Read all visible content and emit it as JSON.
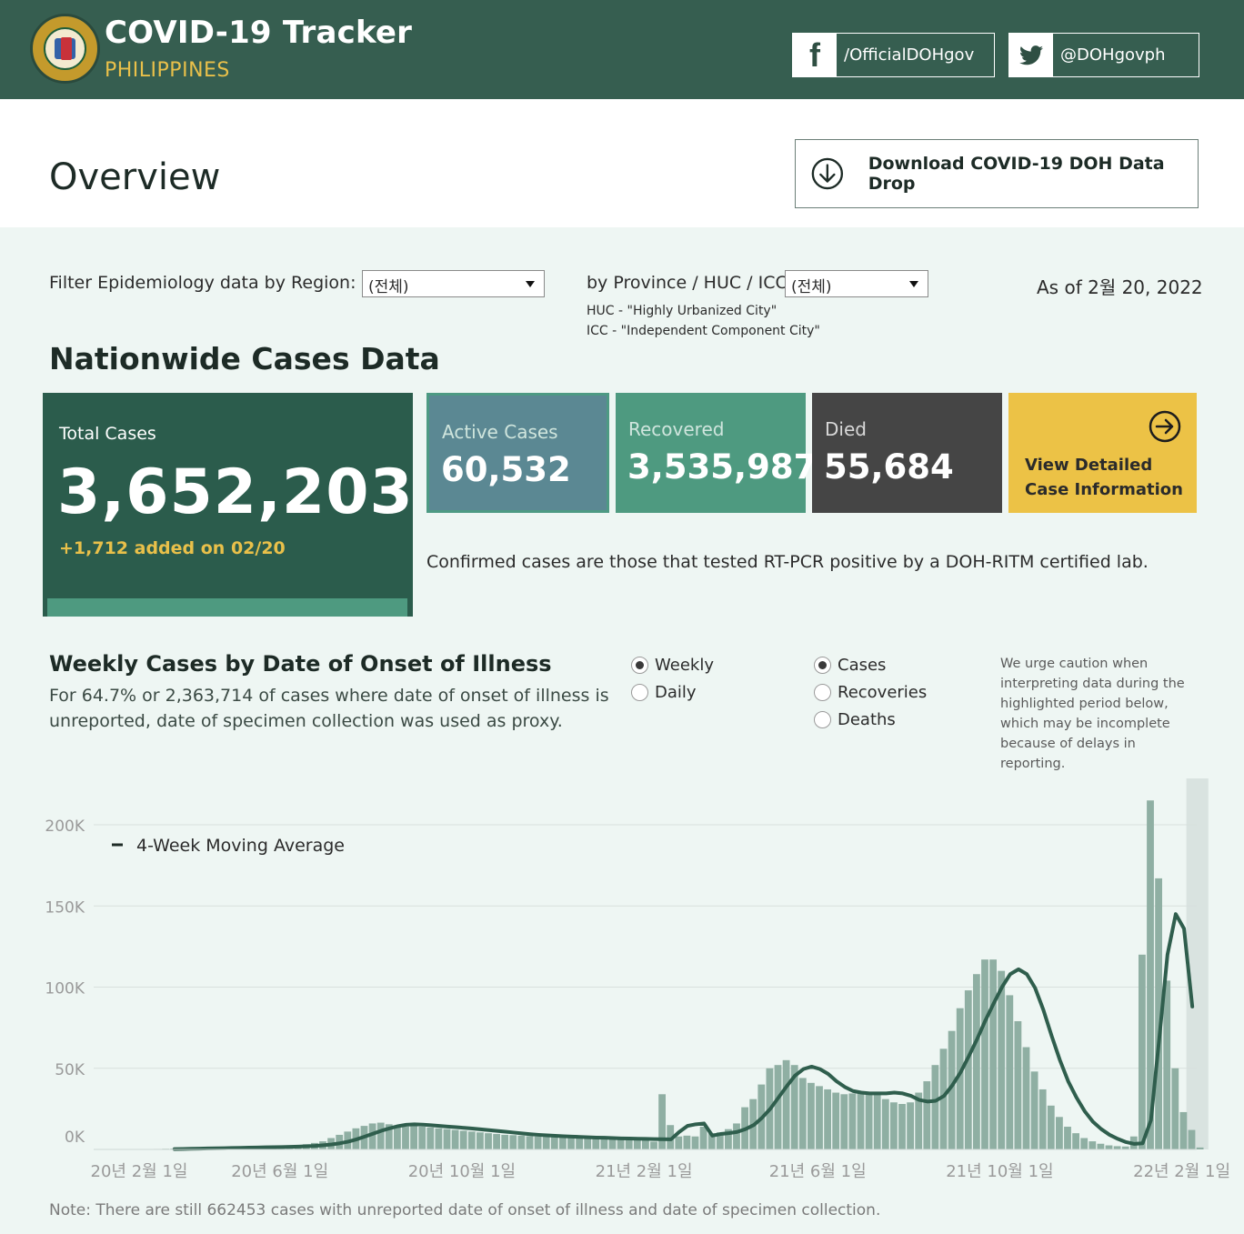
{
  "header": {
    "title": "COVID-19 Tracker",
    "subtitle": "PHILIPPINES",
    "facebook": "/OfficialDOHgov",
    "twitter": "@DOHgovph"
  },
  "overview": {
    "title": "Overview",
    "download_label": "Download COVID-19 DOH Data Drop"
  },
  "filters": {
    "region_label": "Filter Epidemiology data by Region:",
    "region_value": "(전체)",
    "province_label": "by Province / HUC / ICC:",
    "province_value": "(전체)",
    "huc_note": "HUC - \"Highly Urbanized City\"",
    "icc_note": "ICC - \"Independent Component City\"",
    "as_of": "As of 2월 20, 2022"
  },
  "nationwide": {
    "title": "Nationwide Cases Data",
    "total_label": "Total Cases",
    "total_value": "3,652,203",
    "total_added": "+1,712 added on 02/20",
    "active_label": "Active Cases",
    "active_value": "60,532",
    "recovered_label": "Recovered",
    "recovered_value": "3,535,987",
    "died_label": "Died",
    "died_value": "55,684",
    "detail_line1": "View Detailed",
    "detail_line2": "Case Information",
    "confirmed_note": "Confirmed cases are those that tested RT-PCR positive by a DOH-RITM certified lab."
  },
  "weekly": {
    "title": "Weekly Cases by Date of Onset of Illness",
    "desc_line1": "For 64.7% or 2,363,714 of cases where date of onset of illness is",
    "desc_line2": "unreported, date of specimen collection was used as proxy.",
    "period_options": [
      "Weekly",
      "Daily"
    ],
    "period_selected": "Weekly",
    "metric_options": [
      "Cases",
      "Recoveries",
      "Deaths"
    ],
    "metric_selected": "Cases",
    "caution": [
      "We urge caution when",
      "interpreting data during the",
      "highlighted period below,",
      "which may be incomplete",
      "because of delays in",
      "reporting."
    ]
  },
  "chart_data": {
    "type": "bar",
    "legend": "4-Week Moving Average",
    "y_ticks": [
      "0K",
      "50K",
      "100K",
      "150K",
      "200K"
    ],
    "ylim": [
      0,
      200000
    ],
    "x_tick_labels": [
      "20년 2월 1일",
      "20년 6월 1일",
      "20년 10월 1일",
      "21년 2월 1일",
      "21년 6월 1일",
      "21년 10월 1일",
      "22년 2월 1일"
    ],
    "x_tick_week_index": [
      0,
      17,
      39,
      61,
      82,
      104,
      126
    ],
    "bar_color": "#8fafa3",
    "line_color": "#2f5e4d",
    "highlight_weeks": [
      126,
      128
    ],
    "weekly_values": [
      200,
      300,
      400,
      500,
      600,
      700,
      800,
      900,
      1000,
      1100,
      1200,
      1300,
      1400,
      1500,
      1600,
      1800,
      2000,
      2300,
      2700,
      3200,
      4000,
      5000,
      7000,
      9000,
      11000,
      13000,
      14500,
      16000,
      16500,
      15500,
      14000,
      14000,
      14500,
      14000,
      13500,
      13000,
      12500,
      12000,
      11500,
      11000,
      10500,
      10000,
      9500,
      9000,
      8800,
      8500,
      8200,
      8000,
      7800,
      7600,
      7500,
      7300,
      7200,
      7000,
      6800,
      6700,
      6600,
      6500,
      6400,
      6300,
      6200,
      4800,
      34000,
      15000,
      8000,
      8500,
      8000,
      14000,
      10000,
      10500,
      12500,
      16000,
      26000,
      31000,
      40000,
      50000,
      52000,
      55000,
      52000,
      44000,
      41000,
      39000,
      37000,
      35000,
      34000,
      34500,
      35000,
      35500,
      34000,
      31000,
      29000,
      28000,
      29000,
      35000,
      42000,
      52000,
      62000,
      73000,
      87000,
      98000,
      108000,
      117000,
      117000,
      110000,
      95000,
      79000,
      63000,
      48000,
      37000,
      27000,
      20000,
      14000,
      10000,
      7000,
      5000,
      3500,
      2500,
      2000,
      1800,
      8000,
      120000,
      215000,
      167000,
      104000,
      50000,
      23000,
      12000,
      1200
    ],
    "moving_average": [
      200,
      300,
      400,
      500,
      600,
      700,
      800,
      900,
      1000,
      1100,
      1200,
      1300,
      1400,
      1500,
      1600,
      1750,
      1950,
      2200,
      2600,
      3100,
      3800,
      4800,
      6200,
      7900,
      9700,
      11500,
      13000,
      14300,
      15200,
      15500,
      15300,
      14900,
      14500,
      14100,
      13700,
      13300,
      12900,
      12400,
      11900,
      11400,
      10900,
      10400,
      9900,
      9400,
      9000,
      8700,
      8400,
      8100,
      7900,
      7700,
      7500,
      7300,
      7200,
      7000,
      6800,
      6700,
      6600,
      6500,
      6400,
      6300,
      6200,
      10800,
      14500,
      15500,
      16000,
      8500,
      9500,
      10000,
      10800,
      12500,
      15000,
      19500,
      25000,
      32000,
      39000,
      45500,
      49500,
      51000,
      49500,
      46500,
      42000,
      38500,
      36000,
      35000,
      34500,
      34500,
      34500,
      35000,
      34500,
      33000,
      30500,
      29500,
      30000,
      33000,
      39500,
      47500,
      57500,
      68000,
      79500,
      90000,
      100000,
      108000,
      111000,
      108000,
      99500,
      86000,
      70000,
      55000,
      42000,
      32000,
      23500,
      17000,
      12500,
      9000,
      6500,
      4500,
      3400,
      3800,
      18000,
      68000,
      120000,
      145000,
      136000,
      88000
    ]
  },
  "footnote": "Note: There are still 662453 cases with unreported date of onset of illness and date of specimen collection."
}
